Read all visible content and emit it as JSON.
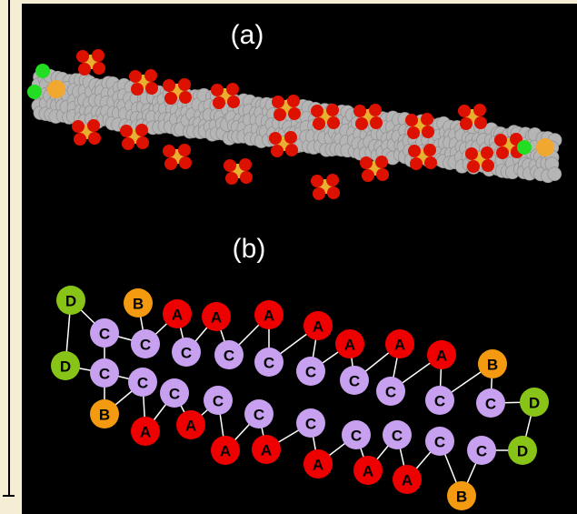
{
  "figure": {
    "panel_a_label": "(a)",
    "panel_b_label": "(b)",
    "beads": [
      "D",
      "B",
      "A",
      "A",
      "A",
      "A",
      "A",
      "A",
      "A",
      "B",
      "D",
      "C",
      "C",
      "C",
      "C",
      "C",
      "C",
      "C",
      "C",
      "C",
      "C",
      "D",
      "C",
      "C",
      "B",
      "C",
      "C",
      "A",
      "A",
      "C",
      "C",
      "A",
      "A",
      "A",
      "C",
      "C",
      "C",
      "A",
      "A",
      "C",
      "D",
      "B"
    ]
  }
}
